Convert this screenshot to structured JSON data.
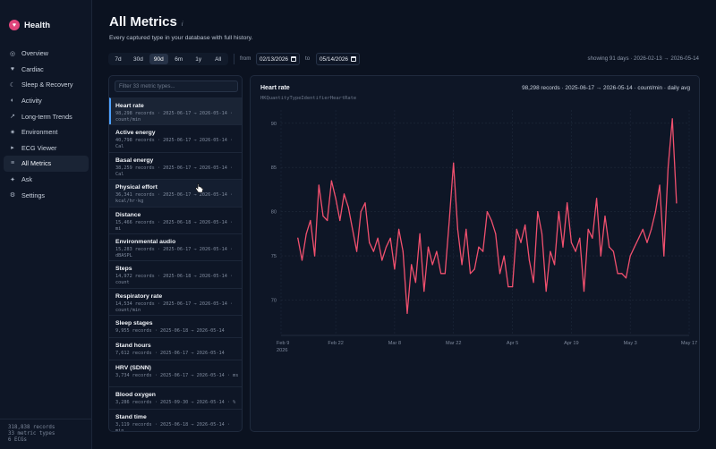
{
  "app": {
    "name": "Health",
    "logo_icon": "heart-icon",
    "accent": "#e0457b"
  },
  "sidebar": {
    "items": [
      {
        "label": "Overview",
        "icon": "overview-icon",
        "glyph": "◎",
        "active": false
      },
      {
        "label": "Cardiac",
        "icon": "heart-icon",
        "glyph": "♥",
        "active": false
      },
      {
        "label": "Sleep & Recovery",
        "icon": "moon-icon",
        "glyph": "☾",
        "active": false
      },
      {
        "label": "Activity",
        "icon": "activity-icon",
        "glyph": "◐",
        "active": false
      },
      {
        "label": "Long-term Trends",
        "icon": "trend-arrow-icon",
        "glyph": "↗",
        "active": false
      },
      {
        "label": "Environment",
        "icon": "sun-icon",
        "glyph": "✷",
        "active": false
      },
      {
        "label": "ECG Viewer",
        "icon": "play-icon",
        "glyph": "▸",
        "active": false
      },
      {
        "label": "All Metrics",
        "icon": "list-icon",
        "glyph": "≡",
        "active": true
      },
      {
        "label": "Ask",
        "icon": "sparkle-icon",
        "glyph": "✦",
        "active": false
      },
      {
        "label": "Settings",
        "icon": "gear-icon",
        "glyph": "⚙",
        "active": false
      }
    ],
    "footer": [
      "318,838 records",
      "33 metric types",
      "6 ECGs"
    ]
  },
  "header": {
    "title": "All Metrics",
    "title_mark": "i",
    "subtitle": "Every captured type in your database with full history."
  },
  "range": {
    "options": [
      "7d",
      "30d",
      "90d",
      "6m",
      "1y",
      "All"
    ],
    "selected": "90d",
    "from_label": "from",
    "to_label": "to",
    "from_value": "02/13/2026",
    "to_value": "05/14/2026",
    "showing": "showing 91 days · 2026-02-13 → 2026-05-14"
  },
  "metrics": {
    "filter_placeholder": "Filter 33 metric types...",
    "items": [
      {
        "name": "Heart rate",
        "meta": "98,298 records · 2025-06-17 → 2026-05-14 · count/min",
        "selected": true
      },
      {
        "name": "Active energy",
        "meta": "40,798 records · 2025-06-17 → 2026-05-14 · Cal"
      },
      {
        "name": "Basal energy",
        "meta": "38,259 records · 2025-06-17 → 2026-05-14 · Cal"
      },
      {
        "name": "Physical effort",
        "meta": "36,341 records · 2025-06-17 → 2026-05-14 · kcal/hr·kg",
        "hover": true
      },
      {
        "name": "Distance",
        "meta": "15,466 records · 2025-06-18 → 2026-05-14 · mi"
      },
      {
        "name": "Environmental audio",
        "meta": "15,283 records · 2025-06-17 → 2026-05-14 · dBASPL"
      },
      {
        "name": "Steps",
        "meta": "14,972 records · 2025-06-18 → 2026-05-14 · count"
      },
      {
        "name": "Respiratory rate",
        "meta": "14,534 records · 2025-06-17 → 2026-05-14 · count/min"
      },
      {
        "name": "Sleep stages",
        "meta": "9,955 records · 2025-06-18 → 2026-05-14"
      },
      {
        "name": "Stand hours",
        "meta": "7,612 records · 2025-06-17 → 2026-05-14"
      },
      {
        "name": "HRV (SDNN)",
        "meta": "3,734 records · 2025-06-17 → 2026-05-14 · ms"
      },
      {
        "name": "Blood oxygen",
        "meta": "3,286 records · 2025-09-30 → 2026-05-14 · %"
      },
      {
        "name": "Stand time",
        "meta": "3,119 records · 2025-06-18 → 2026-05-14 · min"
      }
    ]
  },
  "chart": {
    "title": "Heart rate",
    "identifier": "HKQuantityTypeIdentifierHeartRate",
    "summary": "98,298 records · 2025-06-17 → 2026-05-14 · count/min · daily avg",
    "line_color": "#f0506e"
  },
  "chart_data": {
    "type": "line",
    "title": "Heart rate",
    "xlabel": "",
    "ylabel": "",
    "x_start": "2026-02-09",
    "x_end": "2026-05-17",
    "ylim": [
      66,
      91.5
    ],
    "yticks": [
      70,
      75,
      80,
      85,
      90
    ],
    "xticks": [
      {
        "date": "2026-02-09",
        "label": "Feb 9",
        "year": "2026"
      },
      {
        "date": "2026-02-22",
        "label": "Feb 22"
      },
      {
        "date": "2026-03-08",
        "label": "Mar 8"
      },
      {
        "date": "2026-03-22",
        "label": "Mar 22"
      },
      {
        "date": "2026-04-05",
        "label": "Apr 5"
      },
      {
        "date": "2026-04-19",
        "label": "Apr 19"
      },
      {
        "date": "2026-05-03",
        "label": "May 3"
      },
      {
        "date": "2026-05-17",
        "label": "May 17"
      }
    ],
    "grid": true,
    "series": [
      {
        "x": [
          "2026-02-13",
          "2026-02-14",
          "2026-02-15",
          "2026-02-16",
          "2026-02-17",
          "2026-02-18",
          "2026-02-19",
          "2026-02-20",
          "2026-02-21",
          "2026-02-22",
          "2026-02-23",
          "2026-02-24",
          "2026-02-25",
          "2026-02-26",
          "2026-02-27",
          "2026-02-28",
          "2026-03-01",
          "2026-03-02",
          "2026-03-03",
          "2026-03-04",
          "2026-03-05",
          "2026-03-06",
          "2026-03-07",
          "2026-03-08",
          "2026-03-09",
          "2026-03-10",
          "2026-03-11",
          "2026-03-12",
          "2026-03-13",
          "2026-03-14",
          "2026-03-15",
          "2026-03-16",
          "2026-03-17",
          "2026-03-18",
          "2026-03-19",
          "2026-03-20",
          "2026-03-21",
          "2026-03-22",
          "2026-03-23",
          "2026-03-24",
          "2026-03-25",
          "2026-03-26",
          "2026-03-27",
          "2026-03-28",
          "2026-03-29",
          "2026-03-30",
          "2026-03-31",
          "2026-04-01",
          "2026-04-02",
          "2026-04-03",
          "2026-04-04",
          "2026-04-05",
          "2026-04-06",
          "2026-04-07",
          "2026-04-08",
          "2026-04-09",
          "2026-04-10",
          "2026-04-11",
          "2026-04-12",
          "2026-04-13",
          "2026-04-14",
          "2026-04-15",
          "2026-04-16",
          "2026-04-17",
          "2026-04-18",
          "2026-04-19",
          "2026-04-20",
          "2026-04-21",
          "2026-04-22",
          "2026-04-23",
          "2026-04-24",
          "2026-04-25",
          "2026-04-26",
          "2026-04-27",
          "2026-04-28",
          "2026-04-29",
          "2026-04-30",
          "2026-05-01",
          "2026-05-02",
          "2026-05-03",
          "2026-05-04",
          "2026-05-05",
          "2026-05-06",
          "2026-05-07",
          "2026-05-08",
          "2026-05-09",
          "2026-05-10",
          "2026-05-11",
          "2026-05-12",
          "2026-05-13",
          "2026-05-14"
        ],
        "y": [
          77,
          74.5,
          77.5,
          79,
          75,
          83,
          79.5,
          79,
          83.5,
          81.5,
          79,
          82,
          80.5,
          78,
          75.5,
          80,
          81,
          76.5,
          75.5,
          77,
          74.5,
          76,
          77,
          73.5,
          78,
          75.5,
          68.5,
          74,
          72,
          77.5,
          71,
          76,
          74,
          75.5,
          73,
          73,
          79,
          85.5,
          78,
          74,
          78,
          73,
          73.5,
          76,
          75.5,
          80,
          79,
          77.5,
          73,
          75,
          71.5,
          71.5,
          78,
          76.5,
          78.5,
          74.5,
          72,
          80,
          77.5,
          71,
          75.5,
          74,
          80,
          76,
          81,
          76.5,
          75.5,
          77,
          71,
          78,
          77,
          81.5,
          75,
          79.5,
          76,
          75.5,
          73,
          73,
          72.5,
          75,
          76,
          77,
          78,
          76.5,
          78,
          80,
          83,
          75,
          85,
          90.5,
          81
        ]
      }
    ]
  }
}
